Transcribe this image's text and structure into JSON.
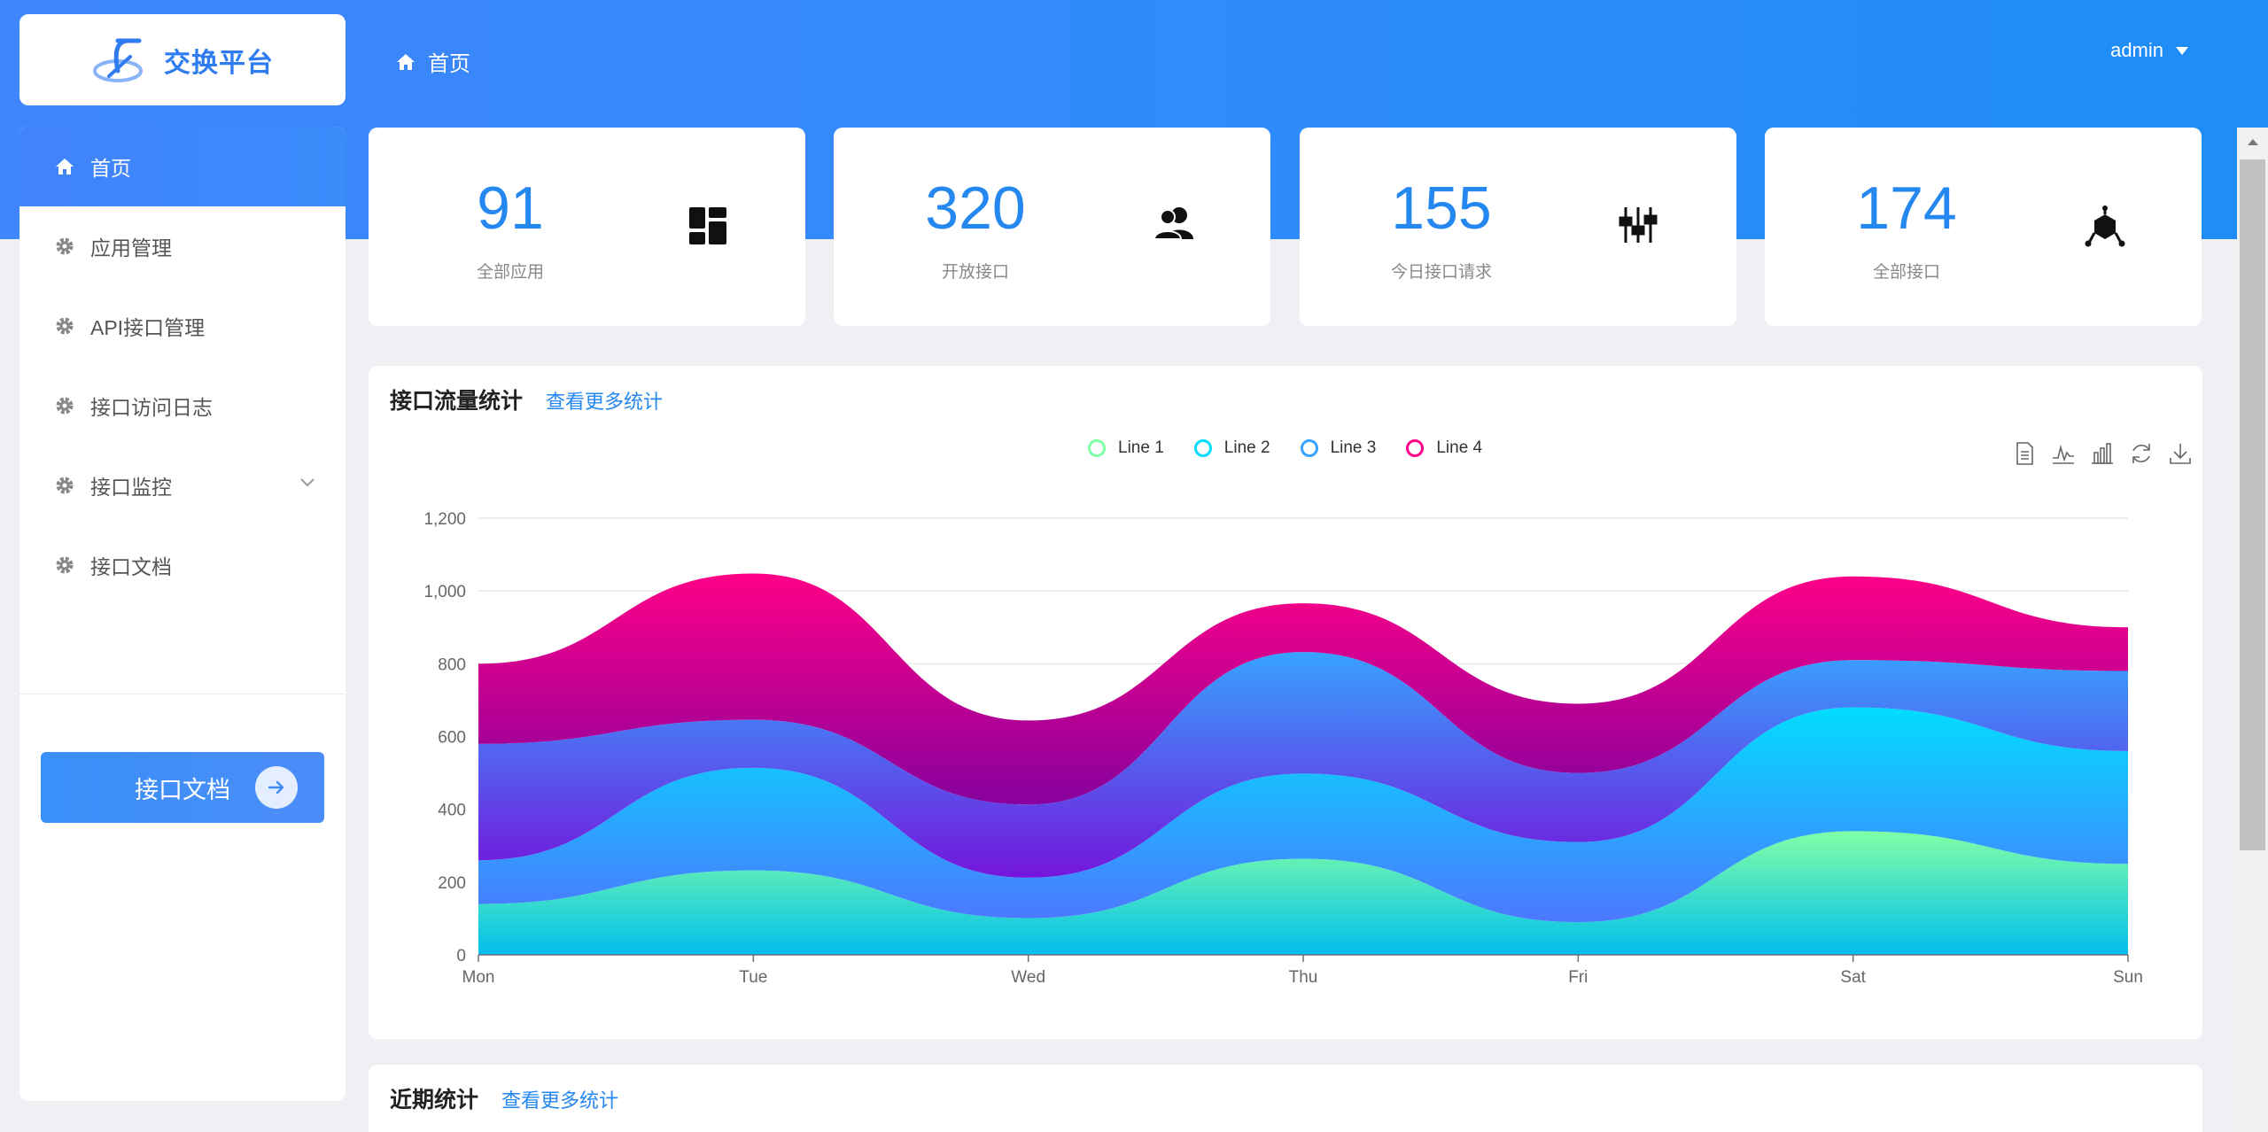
{
  "app": {
    "title": "交换平台"
  },
  "header": {
    "breadcrumb": "首页",
    "user": "admin"
  },
  "sidebar": {
    "items": [
      {
        "label": "首页",
        "icon": "home-icon",
        "active": true
      },
      {
        "label": "应用管理",
        "icon": "gear-icon"
      },
      {
        "label": "API接口管理",
        "icon": "gear-icon"
      },
      {
        "label": "接口访问日志",
        "icon": "gear-icon"
      },
      {
        "label": "接口监控",
        "icon": "gear-icon",
        "expandable": true
      },
      {
        "label": "接口文档",
        "icon": "gear-icon"
      }
    ],
    "doc_button": "接口文档"
  },
  "stats": [
    {
      "value": "91",
      "label": "全部应用",
      "icon": "dashboard-icon"
    },
    {
      "value": "320",
      "label": "开放接口",
      "icon": "users-icon"
    },
    {
      "value": "155",
      "label": "今日接口请求",
      "icon": "sliders-icon"
    },
    {
      "value": "174",
      "label": "全部接口",
      "icon": "cube-network-icon"
    }
  ],
  "traffic_panel": {
    "title": "接口流量统计",
    "link": "查看更多统计"
  },
  "recent_panel": {
    "title": "近期统计",
    "link": "查看更多统计"
  },
  "chart_data": {
    "type": "area",
    "stacked": true,
    "smooth": true,
    "categories": [
      "Mon",
      "Tue",
      "Wed",
      "Thu",
      "Fri",
      "Sat",
      "Sun"
    ],
    "ylim": [
      0,
      1200
    ],
    "yticks": [
      0,
      200,
      400,
      600,
      800,
      1000,
      1200
    ],
    "ytick_labels": [
      "0",
      "200",
      "400",
      "600",
      "800",
      "1,000",
      "1,200"
    ],
    "grid": true,
    "legend_position": "top-center",
    "series": [
      {
        "name": "Line 1",
        "values": [
          140,
          232,
          101,
          264,
          90,
          340,
          250
        ],
        "colors": [
          "#80ffa5",
          "#01bfec"
        ]
      },
      {
        "name": "Line 2",
        "values": [
          120,
          282,
          111,
          234,
          220,
          340,
          310
        ],
        "colors": [
          "#00ddff",
          "#4d77ff"
        ]
      },
      {
        "name": "Line 3",
        "values": [
          320,
          132,
          201,
          334,
          190,
          130,
          220
        ],
        "colors": [
          "#37a2ff",
          "#7415db"
        ]
      },
      {
        "name": "Line 4",
        "values": [
          220,
          402,
          231,
          134,
          190,
          230,
          120
        ],
        "colors": [
          "#ff0087",
          "#87009d"
        ]
      }
    ],
    "legend_colors": [
      "#80ffa5",
      "#00ddff",
      "#37a2ff",
      "#ff0087"
    ]
  }
}
